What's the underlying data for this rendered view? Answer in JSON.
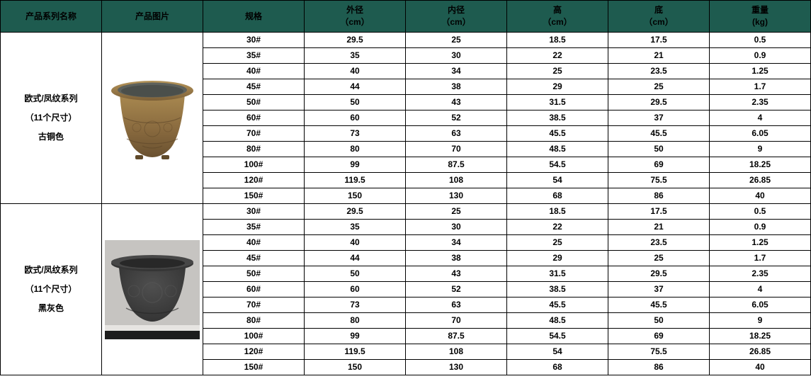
{
  "colors": {
    "header_bg": "#1E5B4F",
    "header_text": "#FFFFFF",
    "table_border": "#000000",
    "cell_text": "#000000",
    "photo_bg_gray": "#C6C4C1",
    "pot_bronze": "#8A6B3F",
    "pot_dark_gray": "#3B3B3B"
  },
  "columns": [
    {
      "name": "产品系列名称"
    },
    {
      "name": "产品图片"
    },
    {
      "name": "规格"
    },
    {
      "name": "外径",
      "unit": "（cm）"
    },
    {
      "name": "内径",
      "unit": "（cm）"
    },
    {
      "name": "高",
      "unit": "（cm）"
    },
    {
      "name": "底",
      "unit": "（cm）"
    },
    {
      "name": "重量",
      "unit": "(kg)"
    }
  ],
  "sections": [
    {
      "series_name": "欧式/凤纹系列",
      "size_note": "（11个尺寸）",
      "color_name": "古铜色",
      "image": "pot-bronze",
      "image_alt": "bronze-phoenix-pattern-pot-photo",
      "rows": [
        [
          "30#",
          "29.5",
          "25",
          "18.5",
          "17.5",
          "0.5"
        ],
        [
          "35#",
          "35",
          "30",
          "22",
          "21",
          "0.9"
        ],
        [
          "40#",
          "40",
          "34",
          "25",
          "23.5",
          "1.25"
        ],
        [
          "45#",
          "44",
          "38",
          "29",
          "25",
          "1.7"
        ],
        [
          "50#",
          "50",
          "43",
          "31.5",
          "29.5",
          "2.35"
        ],
        [
          "60#",
          "60",
          "52",
          "38.5",
          "37",
          "4"
        ],
        [
          "70#",
          "73",
          "63",
          "45.5",
          "45.5",
          "6.05"
        ],
        [
          "80#",
          "80",
          "70",
          "48.5",
          "50",
          "9"
        ],
        [
          "100#",
          "99",
          "87.5",
          "54.5",
          "69",
          "18.25"
        ],
        [
          "120#",
          "119.5",
          "108",
          "54",
          "75.5",
          "26.85"
        ],
        [
          "150#",
          "150",
          "130",
          "68",
          "86",
          "40"
        ]
      ]
    },
    {
      "series_name": "欧式/凤纹系列",
      "size_note": "（11个尺寸）",
      "color_name": "黑灰色",
      "image": "pot-dark",
      "image_alt": "dark-gray-phoenix-pattern-pot-photo",
      "rows": [
        [
          "30#",
          "29.5",
          "25",
          "18.5",
          "17.5",
          "0.5"
        ],
        [
          "35#",
          "35",
          "30",
          "22",
          "21",
          "0.9"
        ],
        [
          "40#",
          "40",
          "34",
          "25",
          "23.5",
          "1.25"
        ],
        [
          "45#",
          "44",
          "38",
          "29",
          "25",
          "1.7"
        ],
        [
          "50#",
          "50",
          "43",
          "31.5",
          "29.5",
          "2.35"
        ],
        [
          "60#",
          "60",
          "52",
          "38.5",
          "37",
          "4"
        ],
        [
          "70#",
          "73",
          "63",
          "45.5",
          "45.5",
          "6.05"
        ],
        [
          "80#",
          "80",
          "70",
          "48.5",
          "50",
          "9"
        ],
        [
          "100#",
          "99",
          "87.5",
          "54.5",
          "69",
          "18.25"
        ],
        [
          "120#",
          "119.5",
          "108",
          "54",
          "75.5",
          "26.85"
        ],
        [
          "150#",
          "150",
          "130",
          "68",
          "86",
          "40"
        ]
      ]
    }
  ]
}
